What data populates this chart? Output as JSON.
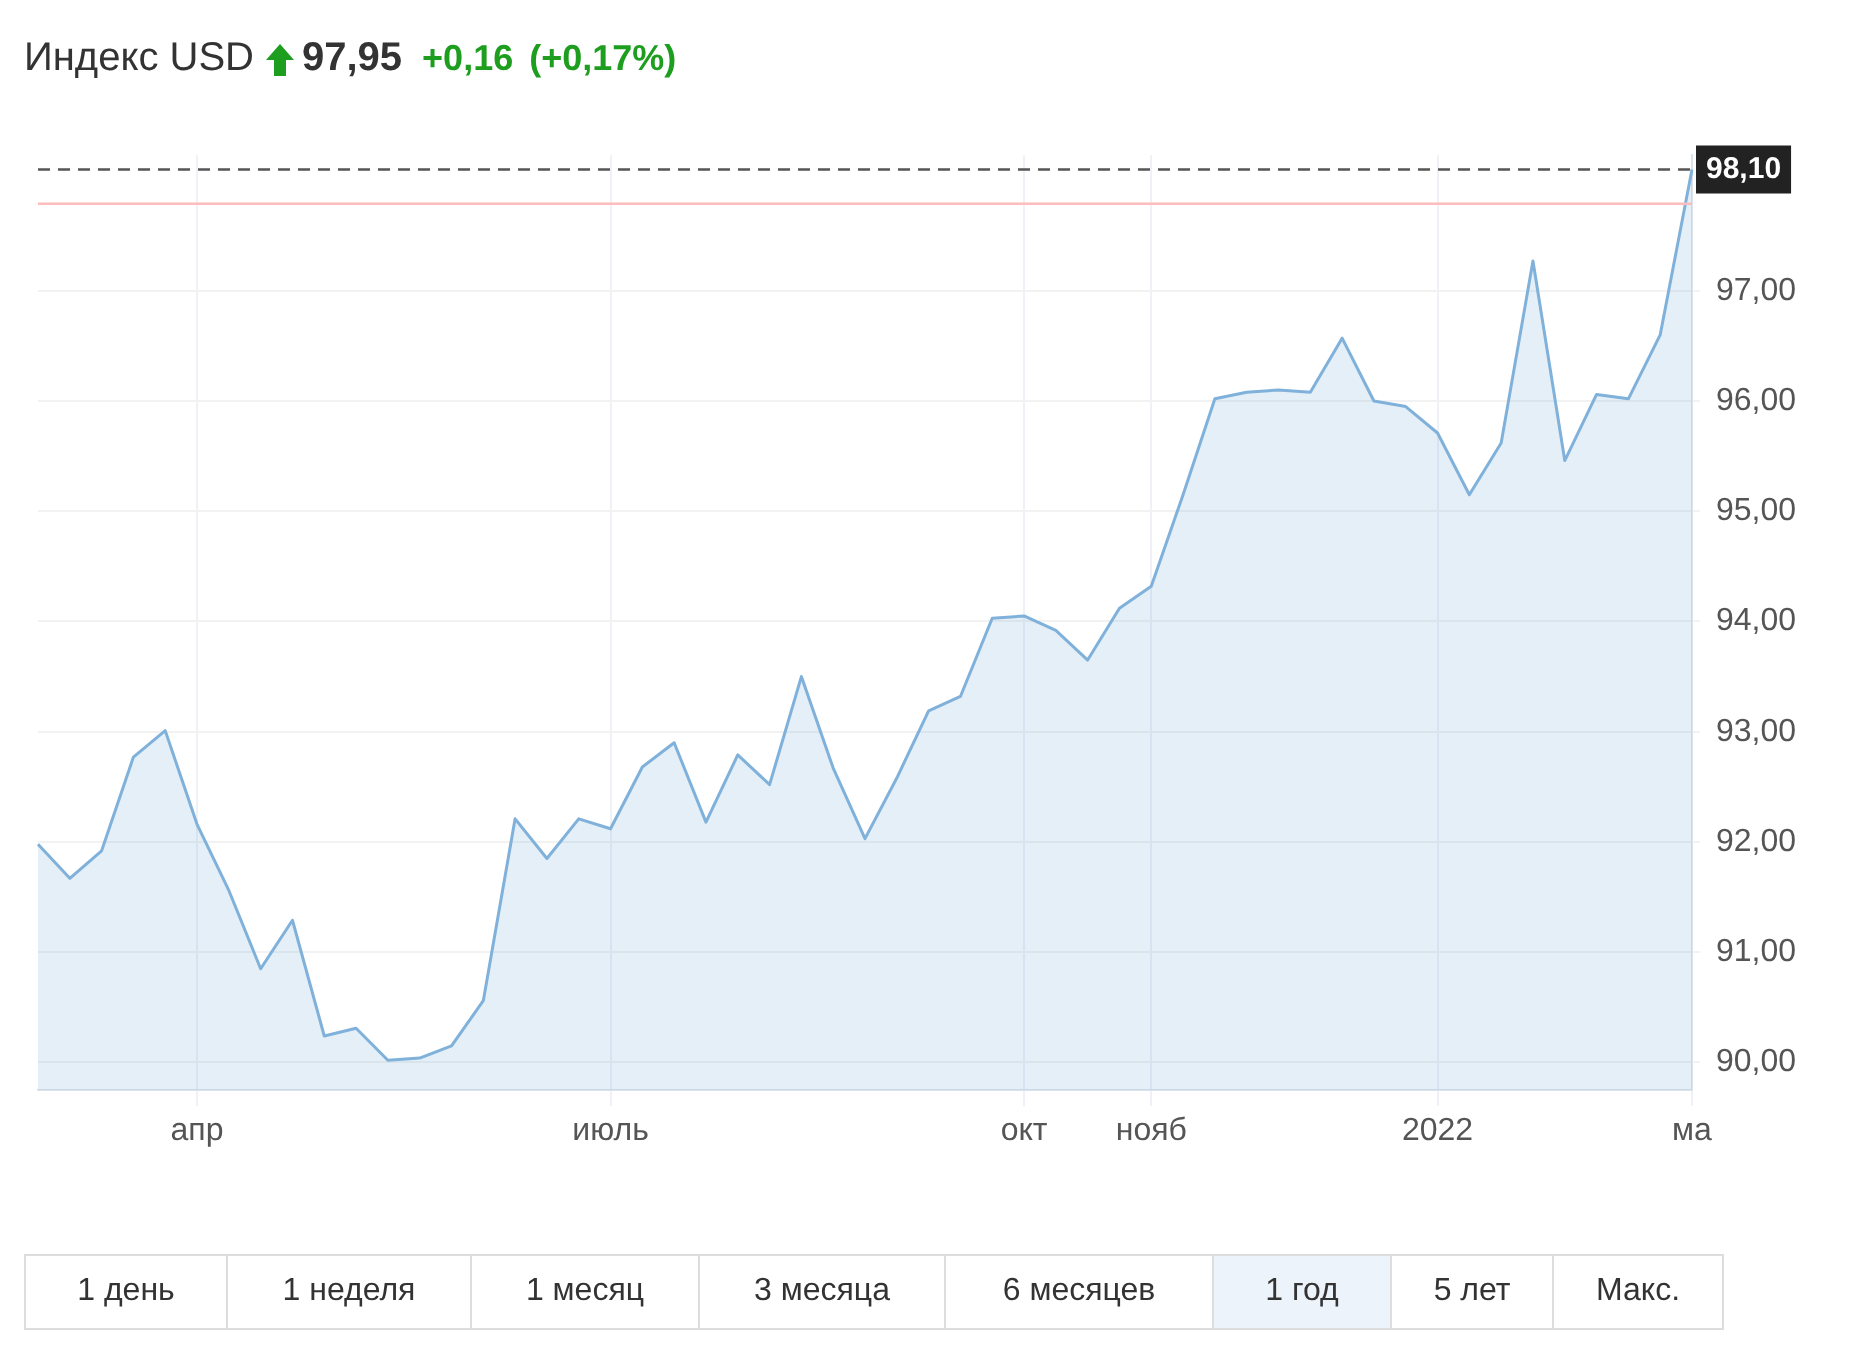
{
  "chart_data": {
    "type": "area",
    "title": "Индекс USD",
    "annotations": [
      "97,95",
      "+0,16",
      "(+0,17%)",
      "1 день",
      "1 неделя",
      "1 месяц",
      "3 месяца",
      "6 месяцев",
      "1 год",
      "5 лет",
      "Макс."
    ],
    "categories": [
      null,
      null,
      null,
      null,
      null,
      "апр",
      null,
      null,
      null,
      null,
      null,
      null,
      null,
      null,
      null,
      null,
      null,
      null,
      "июль",
      null,
      null,
      null,
      null,
      null,
      null,
      null,
      null,
      null,
      null,
      null,
      null,
      "окт",
      null,
      null,
      null,
      "нояб",
      null,
      null,
      null,
      null,
      null,
      null,
      null,
      null,
      "2022",
      null,
      null,
      null,
      null,
      null,
      null,
      null,
      "ма"
    ],
    "series": [
      {
        "color": "#7fb1da",
        "values": [
          91.98,
          91.67,
          91.92,
          92.77,
          93.01,
          92.16,
          91.56,
          90.85,
          91.29,
          90.24,
          90.31,
          90.02,
          90.04,
          90.15,
          90.56,
          92.21,
          91.85,
          92.21,
          92.12,
          92.68,
          92.9,
          92.18,
          92.79,
          92.52,
          93.5,
          92.67,
          92.03,
          92.58,
          93.19,
          93.32,
          94.03,
          94.05,
          93.92,
          93.65,
          94.12,
          94.32,
          95.15,
          96.02,
          96.08,
          96.1,
          96.08,
          96.57,
          96.0,
          95.95,
          95.71,
          95.15,
          95.62,
          97.27,
          95.46,
          96.06,
          96.02,
          96.6,
          98.1
        ]
      }
    ],
    "ylim": [
      89.75,
      98.23
    ],
    "yticks": [
      {
        "value": 90,
        "label": "90,00"
      },
      {
        "value": 91,
        "label": "91,00"
      },
      {
        "value": 92,
        "label": "92,00"
      },
      {
        "value": 93,
        "label": "93,00"
      },
      {
        "value": 94,
        "label": "94,00"
      },
      {
        "value": 95,
        "label": "95,00"
      },
      {
        "value": 96,
        "label": "96,00"
      },
      {
        "value": 97,
        "label": "97,00"
      }
    ],
    "ref_lines": [
      {
        "axis": "y",
        "value": 98.1,
        "label": "98,10",
        "color": "#555555",
        "line_style": "dashed"
      },
      {
        "axis": "y",
        "value": 97.79,
        "color": "#ffbcbc"
      }
    ],
    "grid": true,
    "legend": false,
    "marker": "none",
    "line_style": "solid"
  }
}
